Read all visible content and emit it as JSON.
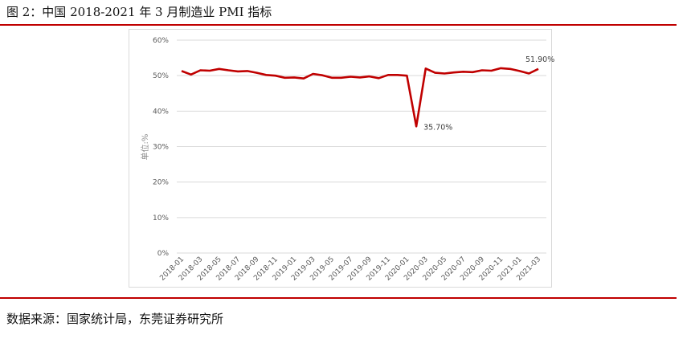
{
  "figure": {
    "title": "图 2：中国 2018-2021 年 3 月制造业 PMI 指标",
    "source": "数据来源：国家统计局，东莞证券研究所"
  },
  "chart_data": {
    "type": "line",
    "title": "",
    "ylabel": "单位:%",
    "ylim": [
      0,
      60
    ],
    "yticks": [
      "0%",
      "10%",
      "20%",
      "30%",
      "40%",
      "50%",
      "60%"
    ],
    "grid": true,
    "line_color": "#c00000",
    "months": [
      "2018-01",
      "2018-02",
      "2018-03",
      "2018-04",
      "2018-05",
      "2018-06",
      "2018-07",
      "2018-08",
      "2018-09",
      "2018-10",
      "2018-11",
      "2018-12",
      "2019-01",
      "2019-02",
      "2019-03",
      "2019-04",
      "2019-05",
      "2019-06",
      "2019-07",
      "2019-08",
      "2019-09",
      "2019-10",
      "2019-11",
      "2019-12",
      "2020-01",
      "2020-02",
      "2020-03",
      "2020-04",
      "2020-05",
      "2020-06",
      "2020-07",
      "2020-08",
      "2020-09",
      "2020-10",
      "2020-11",
      "2020-12",
      "2021-01",
      "2021-02",
      "2021-03"
    ],
    "xtick_labels": [
      "2018-01",
      "2018-03",
      "2018-05",
      "2018-07",
      "2018-09",
      "2018-11",
      "2019-01",
      "2019-03",
      "2019-05",
      "2019-07",
      "2019-09",
      "2019-11",
      "2020-01",
      "2020-03",
      "2020-05",
      "2020-07",
      "2020-09",
      "2020-11",
      "2021-01",
      "2021-03"
    ],
    "values": [
      51.3,
      50.3,
      51.5,
      51.4,
      51.9,
      51.5,
      51.2,
      51.3,
      50.8,
      50.2,
      50.0,
      49.4,
      49.5,
      49.2,
      50.5,
      50.1,
      49.4,
      49.4,
      49.7,
      49.5,
      49.8,
      49.3,
      50.2,
      50.2,
      50.0,
      35.7,
      52.0,
      50.8,
      50.6,
      50.9,
      51.1,
      51.0,
      51.5,
      51.4,
      52.1,
      51.9,
      51.3,
      50.6,
      51.9
    ],
    "annotations": [
      {
        "month": "2020-02",
        "text": "35.70%"
      },
      {
        "month": "2021-03",
        "text": "51.90%"
      }
    ]
  }
}
